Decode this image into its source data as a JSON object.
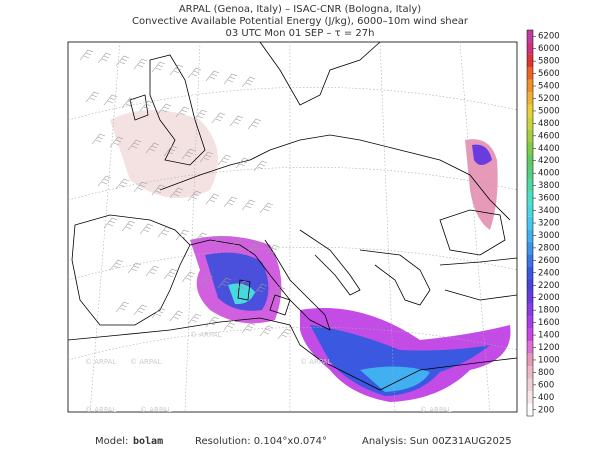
{
  "header": {
    "lines": [
      "ARPAL (Genoa, Italy)  –  ISAC-CNR (Bologna, Italy)",
      "Convective Available Potential Energy (J/kg), 6000–10m wind shear",
      "03 UTC Mon 01 SEP  –  τ = 27h"
    ]
  },
  "watermark": "© ARPAL",
  "colorbar": {
    "levels": [
      200,
      400,
      600,
      800,
      1000,
      1200,
      1400,
      1600,
      1800,
      2000,
      2200,
      2400,
      2600,
      2800,
      3000,
      3200,
      3400,
      3600,
      3800,
      4000,
      4200,
      4400,
      4600,
      4800,
      5000,
      5200,
      5400,
      5600,
      5800,
      6000,
      6200
    ],
    "colors": [
      "#ffffff",
      "#f6e6e6",
      "#f0d0d4",
      "#ebb8c4",
      "#e69ab8",
      "#e070d8",
      "#cc44e6",
      "#a83ee8",
      "#8a3ce6",
      "#6a3ce0",
      "#4a44dc",
      "#3a58e0",
      "#3c74e6",
      "#3c94ec",
      "#40b0f0",
      "#44c8f0",
      "#48d8e0",
      "#4ce0c8",
      "#4cd8a4",
      "#50d080",
      "#60cc60",
      "#80cc48",
      "#a4d040",
      "#c8d43c",
      "#e8d038",
      "#f0b030",
      "#f09028",
      "#ec6424",
      "#e03434",
      "#d0307c",
      "#c03ca0"
    ]
  },
  "footer": {
    "model_label": "Model:",
    "model": "bolam",
    "resolution": "Resolution: 0.104°x0.074°",
    "analysis": "Analysis: Sun 00Z31AUG2025"
  }
}
